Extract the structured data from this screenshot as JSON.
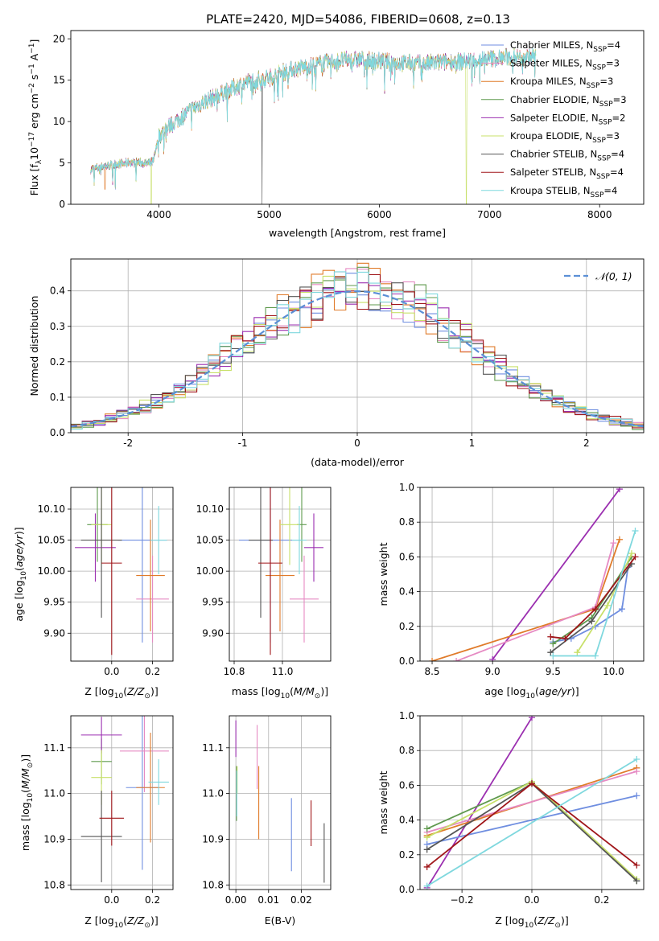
{
  "figure_title": "PLATE=2420, MJD=54086, FIBERID=0608, z=0.13",
  "models": [
    {
      "label": "Chabrier MILES, N",
      "sub": "SSP",
      "tail": "=4",
      "color": "#6f8ee0"
    },
    {
      "label": "Salpeter MILES, N",
      "sub": "SSP",
      "tail": "=3",
      "color": "#e68ac3"
    },
    {
      "label": "Kroupa MILES, N",
      "sub": "SSP",
      "tail": "=3",
      "color": "#e07b2a"
    },
    {
      "label": "Chabrier ELODIE, N",
      "sub": "SSP",
      "tail": "=3",
      "color": "#5f9a4e"
    },
    {
      "label": "Salpeter ELODIE, N",
      "sub": "SSP",
      "tail": "=2",
      "color": "#9b2fb0"
    },
    {
      "label": "Kroupa ELODIE, N",
      "sub": "SSP",
      "tail": "=3",
      "color": "#c8e06a"
    },
    {
      "label": "Chabrier STELIB, N",
      "sub": "SSP",
      "tail": "=4",
      "color": "#555555"
    },
    {
      "label": "Salpeter STELIB, N",
      "sub": "SSP",
      "tail": "=4",
      "color": "#a0161a"
    },
    {
      "label": "Kroupa STELIB, N",
      "sub": "SSP",
      "tail": "=4",
      "color": "#7fd8de"
    }
  ],
  "chart_data": [
    {
      "id": "spectrum",
      "type": "line",
      "xlabel": "wavelength [Angstrom, rest frame]",
      "ylabel": "Flux [f",
      "ylabel_parts": [
        "Flux [f",
        "λ",
        "10",
        "−17",
        " erg cm",
        "−2",
        " s",
        "−1",
        " A",
        "−1",
        "]"
      ],
      "xlim": [
        3200,
        8400
      ],
      "ylim": [
        0,
        21
      ],
      "xticks": [
        4000,
        5000,
        6000,
        7000,
        8000
      ],
      "yticks": [
        0,
        5,
        10,
        15,
        20
      ],
      "continuum_x": [
        3380,
        3500,
        3600,
        3700,
        3800,
        3900,
        3950,
        4000,
        4100,
        4200,
        4300,
        4400,
        4600,
        4800,
        5000,
        5200,
        5400,
        5600,
        5800,
        6000,
        6200,
        6400,
        6600,
        6800,
        7000,
        7200,
        7400,
        7420
      ],
      "continuum_y": [
        4.2,
        4.6,
        4.8,
        5.0,
        5.1,
        4.9,
        5.2,
        8.3,
        9.5,
        10.5,
        11.5,
        12.3,
        13.6,
        14.8,
        15.3,
        16.3,
        16.8,
        17.3,
        17.5,
        17.3,
        17.1,
        17.0,
        17.2,
        17.3,
        17.6,
        17.8,
        17.9,
        17.9
      ],
      "dropouts": [
        {
          "x": 3510,
          "to": 1.8,
          "model": 2
        },
        {
          "x": 3930,
          "to": 0,
          "model": 5
        },
        {
          "x": 4935,
          "to": 0,
          "model": 6
        },
        {
          "x": 6790,
          "to": 0,
          "model": 5
        },
        {
          "x": 7425,
          "to": 0,
          "model": 2
        }
      ],
      "grid": false,
      "legend": "top-right"
    },
    {
      "id": "residuals",
      "type": "histogram",
      "xlabel": "(data-model)/error",
      "ylabel": "Normed distribution",
      "xlim": [
        -2.5,
        2.5
      ],
      "ylim": [
        0,
        0.49
      ],
      "xticks": [
        -2,
        -1,
        0,
        1,
        2
      ],
      "yticks": [
        0.0,
        0.1,
        0.2,
        0.3,
        0.4
      ],
      "bin_width": 0.1,
      "reference_curve": "𝒩(0, 1)",
      "grid": true,
      "legend": "top-right"
    },
    {
      "id": "age_vs_Z",
      "type": "errorbar",
      "xlabel": "Z [log10(Z/Z⊙)]",
      "ylabel": "age  [log10(age/yr)]",
      "xlim": [
        -0.2,
        0.3
      ],
      "ylim": [
        9.855,
        10.135
      ],
      "xticks": [
        0.0,
        0.2
      ],
      "yticks": [
        9.9,
        9.95,
        10.0,
        10.05,
        10.1
      ],
      "points": [
        {
          "model": 0,
          "x": 0.15,
          "y": 10.05,
          "xerr": 0.12,
          "yerr": 0.165
        },
        {
          "model": 1,
          "x": 0.2,
          "y": 9.955,
          "xerr": 0.08,
          "yerr": 0.07
        },
        {
          "model": 2,
          "x": 0.19,
          "y": 9.993,
          "xerr": 0.07,
          "yerr": 0.09
        },
        {
          "model": 3,
          "x": -0.07,
          "y": 10.075,
          "xerr": 0.05,
          "yerr": 0.06
        },
        {
          "model": 4,
          "x": -0.08,
          "y": 10.038,
          "xerr": 0.1,
          "yerr": 0.055
        },
        {
          "model": 5,
          "x": -0.05,
          "y": 10.075,
          "xerr": 0.05,
          "yerr": 0.065
        },
        {
          "model": 6,
          "x": -0.05,
          "y": 10.05,
          "xerr": 0.1,
          "yerr": 0.125
        },
        {
          "model": 7,
          "x": 0.0,
          "y": 10.013,
          "xerr": 0.05,
          "yerr": 0.148
        },
        {
          "model": 8,
          "x": 0.23,
          "y": 10.05,
          "xerr": 0.04,
          "yerr": 0.055
        }
      ]
    },
    {
      "id": "age_vs_mass",
      "type": "errorbar",
      "xlabel": "mass [log10(M/M⊙)]",
      "ylabel": "",
      "xlim": [
        10.78,
        11.2
      ],
      "ylim": [
        9.855,
        10.135
      ],
      "xticks": [
        10.8,
        11.0
      ],
      "yticks": [
        9.9,
        9.95,
        10.0,
        10.05,
        10.1
      ],
      "points": [
        {
          "model": 0,
          "x": 10.95,
          "y": 10.05,
          "xerr": 0.13,
          "yerr": 0.165
        },
        {
          "model": 1,
          "x": 11.09,
          "y": 9.955,
          "xerr": 0.06,
          "yerr": 0.07
        },
        {
          "model": 2,
          "x": 10.99,
          "y": 9.993,
          "xerr": 0.06,
          "yerr": 0.09
        },
        {
          "model": 3,
          "x": 11.08,
          "y": 10.075,
          "xerr": 0.02,
          "yerr": 0.06
        },
        {
          "model": 4,
          "x": 11.13,
          "y": 10.038,
          "xerr": 0.04,
          "yerr": 0.055
        },
        {
          "model": 5,
          "x": 11.03,
          "y": 10.075,
          "xerr": 0.04,
          "yerr": 0.065
        },
        {
          "model": 6,
          "x": 10.91,
          "y": 10.05,
          "xerr": 0.05,
          "yerr": 0.125
        },
        {
          "model": 7,
          "x": 10.95,
          "y": 10.013,
          "xerr": 0.05,
          "yerr": 0.148
        },
        {
          "model": 8,
          "x": 11.07,
          "y": 10.05,
          "xerr": 0.03,
          "yerr": 0.055
        }
      ]
    },
    {
      "id": "weights_vs_age",
      "type": "line",
      "xlabel": "age  [log10(age/yr)]",
      "ylabel": "mass weight",
      "xlim": [
        8.4,
        10.25
      ],
      "ylim": [
        0,
        1.0
      ],
      "xticks": [
        8.5,
        9.0,
        9.5,
        10.0
      ],
      "yticks": [
        0.0,
        0.2,
        0.4,
        0.6,
        0.8,
        1.0
      ],
      "series": [
        {
          "model": 4,
          "x": [
            9.0,
            10.05
          ],
          "y": [
            0.01,
            0.99
          ]
        },
        {
          "model": 2,
          "x": [
            8.5,
            9.85,
            10.05
          ],
          "y": [
            0.0,
            0.3,
            0.7
          ]
        },
        {
          "model": 1,
          "x": [
            8.7,
            9.85,
            10.0
          ],
          "y": [
            0.0,
            0.31,
            0.68
          ]
        },
        {
          "model": 0,
          "x": [
            9.5,
            9.65,
            9.85,
            10.07,
            10.12
          ],
          "y": [
            0.11,
            0.13,
            0.2,
            0.3,
            0.54
          ]
        },
        {
          "model": 3,
          "x": [
            9.5,
            9.82,
            10.15
          ],
          "y": [
            0.1,
            0.25,
            0.6
          ]
        },
        {
          "model": 5,
          "x": [
            9.7,
            9.95,
            10.15
          ],
          "y": [
            0.05,
            0.32,
            0.62
          ]
        },
        {
          "model": 6,
          "x": [
            9.48,
            9.82,
            10.15
          ],
          "y": [
            0.05,
            0.23,
            0.56
          ]
        },
        {
          "model": 7,
          "x": [
            9.48,
            9.6,
            9.85,
            10.18
          ],
          "y": [
            0.14,
            0.13,
            0.3,
            0.6
          ]
        },
        {
          "model": 8,
          "x": [
            9.5,
            9.85,
            10.18
          ],
          "y": [
            0.03,
            0.03,
            0.75
          ]
        }
      ]
    },
    {
      "id": "mass_vs_Z",
      "type": "errorbar",
      "xlabel": "Z [log10(Z/Z⊙)]",
      "ylabel": "mass [log10(M/M⊙)]",
      "xlim": [
        -0.2,
        0.3
      ],
      "ylim": [
        10.79,
        11.17
      ],
      "xticks": [
        0.0,
        0.2
      ],
      "yticks": [
        10.8,
        10.9,
        11.0,
        11.1
      ],
      "points": [
        {
          "model": 0,
          "x": 0.15,
          "y": 11.013,
          "xerr": 0.08,
          "yerr": 0.18
        },
        {
          "model": 1,
          "x": 0.16,
          "y": 11.093,
          "xerr": 0.12,
          "yerr": 0.09
        },
        {
          "model": 2,
          "x": 0.19,
          "y": 11.013,
          "xerr": 0.07,
          "yerr": 0.12
        },
        {
          "model": 3,
          "x": -0.05,
          "y": 11.07,
          "xerr": 0.05,
          "yerr": 0.05
        },
        {
          "model": 4,
          "x": -0.05,
          "y": 11.128,
          "xerr": 0.1,
          "yerr": 0.04
        },
        {
          "model": 5,
          "x": -0.05,
          "y": 11.035,
          "xerr": 0.05,
          "yerr": 0.06
        },
        {
          "model": 6,
          "x": -0.05,
          "y": 10.906,
          "xerr": 0.1,
          "yerr": 0.1
        },
        {
          "model": 7,
          "x": 0.0,
          "y": 10.946,
          "xerr": 0.06,
          "yerr": 0.06
        },
        {
          "model": 8,
          "x": 0.23,
          "y": 11.025,
          "xerr": 0.05,
          "yerr": 0.05
        }
      ]
    },
    {
      "id": "mass_vs_ebv",
      "type": "errorbar",
      "xlabel": "E(B-V)",
      "ylabel": "",
      "xlim": [
        -0.002,
        0.029
      ],
      "ylim": [
        10.79,
        11.17
      ],
      "xticks": [
        0.0,
        0.01,
        0.02
      ],
      "yticks": [
        10.8,
        10.9,
        11.0,
        11.1
      ],
      "points": [
        {
          "model": 0,
          "x": 0.017,
          "y": 10.91,
          "xerr": 0,
          "yerr": 0.08
        },
        {
          "model": 1,
          "x": 0.0065,
          "y": 11.08,
          "xerr": 0,
          "yerr": 0.07
        },
        {
          "model": 2,
          "x": 0.007,
          "y": 10.98,
          "xerr": 0,
          "yerr": 0.08
        },
        {
          "model": 3,
          "x": 0.0002,
          "y": 11.0,
          "xerr": 0,
          "yerr": 0.06
        },
        {
          "model": 4,
          "x": 0.0,
          "y": 11.12,
          "xerr": 0,
          "yerr": 0.04
        },
        {
          "model": 5,
          "x": 0.0004,
          "y": 11.03,
          "xerr": 0,
          "yerr": 0.03
        },
        {
          "model": 6,
          "x": 0.027,
          "y": 10.87,
          "xerr": 0,
          "yerr": 0.065
        },
        {
          "model": 7,
          "x": 0.023,
          "y": 10.935,
          "xerr": 0,
          "yerr": 0.05
        },
        {
          "model": 8,
          "x": 0.0003,
          "y": 11.0,
          "xerr": 0,
          "yerr": 0.05
        }
      ]
    },
    {
      "id": "weights_vs_Z",
      "type": "line",
      "xlabel": "Z [log10(Z/Z⊙)]",
      "ylabel": "mass weight",
      "xlim": [
        -0.32,
        0.32
      ],
      "ylim": [
        0,
        1.0
      ],
      "xticks": [
        -0.2,
        0.0,
        0.2
      ],
      "yticks": [
        0.0,
        0.2,
        0.4,
        0.6,
        0.8,
        1.0
      ],
      "series": [
        {
          "model": 4,
          "x": [
            -0.3,
            0.0
          ],
          "y": [
            0.01,
            0.99
          ]
        },
        {
          "model": 0,
          "x": [
            -0.3,
            0.3
          ],
          "y": [
            0.26,
            0.54
          ]
        },
        {
          "model": 2,
          "x": [
            -0.3,
            0.3
          ],
          "y": [
            0.31,
            0.7
          ]
        },
        {
          "model": 1,
          "x": [
            -0.3,
            0.3
          ],
          "y": [
            0.33,
            0.68
          ]
        },
        {
          "model": 3,
          "x": [
            -0.3,
            0.0,
            0.3
          ],
          "y": [
            0.35,
            0.62,
            0.05
          ]
        },
        {
          "model": 5,
          "x": [
            -0.3,
            0.0,
            0.3
          ],
          "y": [
            0.3,
            0.62,
            0.06
          ]
        },
        {
          "model": 6,
          "x": [
            -0.3,
            0.0,
            0.3
          ],
          "y": [
            0.23,
            0.61,
            0.05
          ]
        },
        {
          "model": 7,
          "x": [
            -0.3,
            0.0,
            0.3
          ],
          "y": [
            0.13,
            0.61,
            0.14
          ]
        },
        {
          "model": 8,
          "x": [
            -0.3,
            0.3
          ],
          "y": [
            0.02,
            0.75
          ]
        }
      ]
    }
  ]
}
